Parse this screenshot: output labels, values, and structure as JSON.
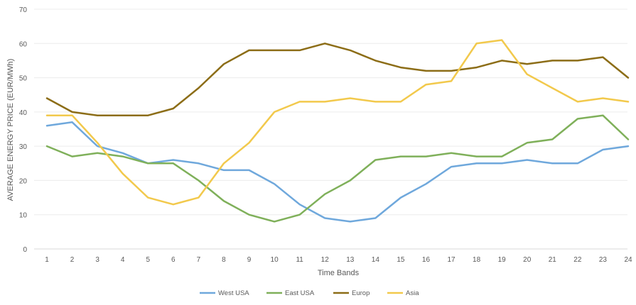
{
  "chart_data": {
    "type": "line",
    "title": "",
    "xlabel": "Time Bands",
    "ylabel": "AVERAGE ENERGY PRICE (EUR/MWh)",
    "ylim": [
      0,
      70
    ],
    "yticks": [
      0,
      10,
      20,
      30,
      40,
      50,
      60,
      70
    ],
    "categories": [
      "1",
      "2",
      "3",
      "4",
      "5",
      "6",
      "7",
      "8",
      "9",
      "10",
      "11",
      "12",
      "13",
      "14",
      "15",
      "16",
      "17",
      "18",
      "19",
      "20",
      "21",
      "22",
      "23",
      "24"
    ],
    "grid": true,
    "legend_position": "bottom",
    "series": [
      {
        "name": "West USA",
        "color": "#6fa8dc",
        "values": [
          36,
          37,
          30,
          28,
          25,
          26,
          25,
          23,
          23,
          19,
          13,
          9,
          8,
          9,
          15,
          19,
          24,
          25,
          25,
          26,
          25,
          25,
          29,
          30
        ]
      },
      {
        "name": "East USA",
        "color": "#7fb05a",
        "values": [
          30,
          27,
          28,
          27,
          25,
          25,
          20,
          14,
          10,
          8,
          10,
          16,
          20,
          26,
          27,
          27,
          28,
          27,
          27,
          31,
          32,
          38,
          39,
          32
        ]
      },
      {
        "name": "Europ",
        "color": "#8c6d17",
        "values": [
          44,
          40,
          39,
          39,
          39,
          41,
          47,
          54,
          58,
          58,
          58,
          60,
          58,
          55,
          53,
          52,
          52,
          53,
          55,
          54,
          55,
          55,
          56,
          50
        ]
      },
      {
        "name": "Asia",
        "color": "#f2c94c",
        "values": [
          39,
          39,
          31,
          22,
          15,
          13,
          15,
          25,
          31,
          40,
          43,
          43,
          44,
          43,
          43,
          48,
          49,
          60,
          61,
          51,
          47,
          43,
          44,
          43
        ]
      }
    ]
  }
}
